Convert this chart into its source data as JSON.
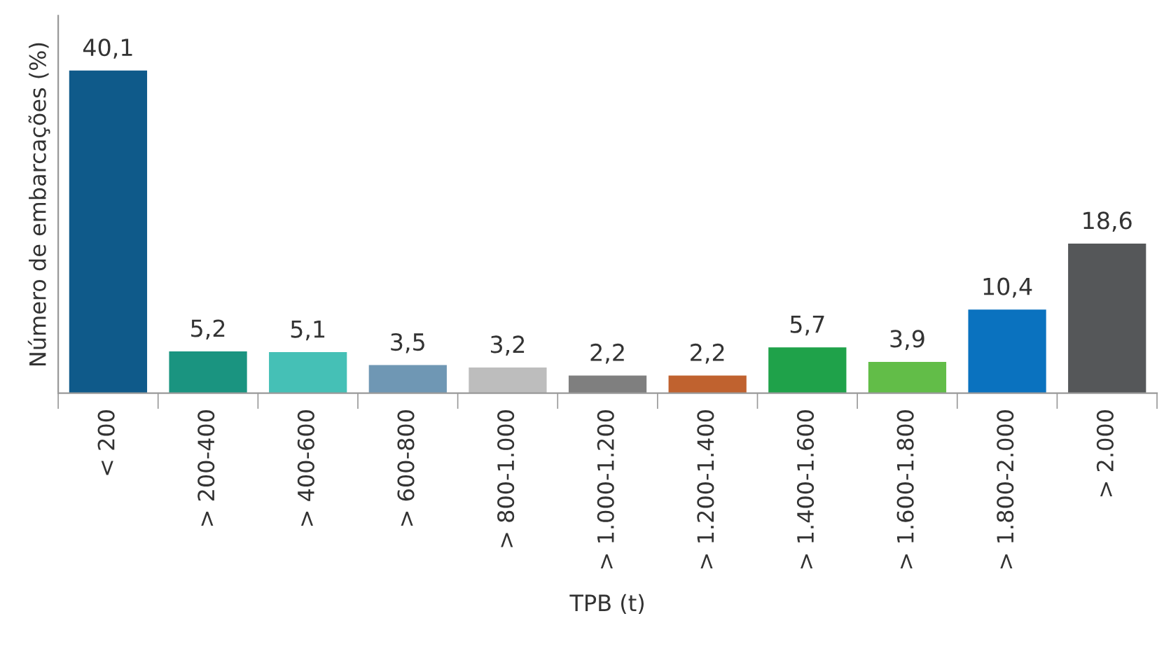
{
  "chart_data": {
    "type": "bar",
    "xlabel": "TPB (t)",
    "ylabel": "Número de embarcações (%)",
    "categories": [
      "< 200",
      "> 200-400",
      "> 400-600",
      "> 600-800",
      "> 800-1.000",
      "> 1.000-1.200",
      "> 1.200-1.400",
      "> 1.400-1.600",
      "> 1.600-1.800",
      "> 1.800-2.000",
      "> 2.000"
    ],
    "values": [
      40.1,
      5.2,
      5.1,
      3.5,
      3.2,
      2.2,
      2.2,
      5.7,
      3.9,
      10.4,
      18.6
    ],
    "value_labels": [
      "40,1",
      "5,2",
      "5,1",
      "3,5",
      "3,2",
      "2,2",
      "2,2",
      "5,7",
      "3,9",
      "10,4",
      "18,6"
    ],
    "colors": [
      "#0f5a8a",
      "#1a9480",
      "#45c0b6",
      "#6f97b4",
      "#bdbdbd",
      "#7f7f7f",
      "#c0622f",
      "#1fa24a",
      "#62bd48",
      "#0a72bf",
      "#555759"
    ],
    "grid": false
  }
}
